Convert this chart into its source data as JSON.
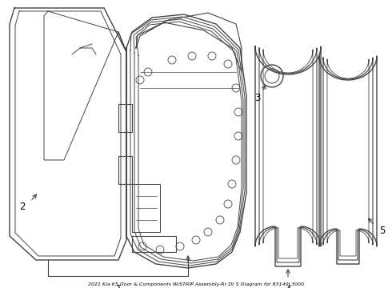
{
  "title": "2021 Kia K5 Door & Components W/STRIP Assembly-Rr Dr S Diagram for 83140L3000",
  "bg_color": "#ffffff",
  "line_color": "#444444",
  "label_color": "#000000",
  "fig_w": 4.9,
  "fig_h": 3.6,
  "dpi": 100
}
